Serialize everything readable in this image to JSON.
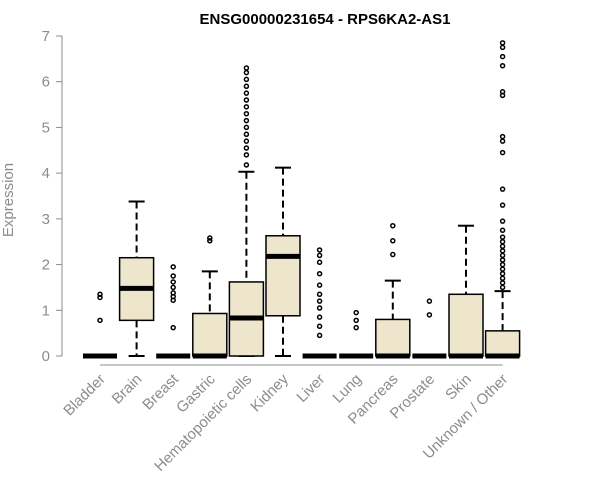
{
  "chart_data": {
    "type": "boxplot",
    "title": "ENSG00000231654 - RPS6KA2-AS1",
    "ylabel": "Expression",
    "xlabel": "",
    "ylim": [
      0,
      7
    ],
    "yticks": [
      "0",
      "1",
      "2",
      "3",
      "4",
      "5",
      "6",
      "7"
    ],
    "grid": false,
    "colors": {
      "box_fill": "#ede5cc",
      "stroke": "#000000",
      "axis": "#8c8c8c"
    },
    "categories": [
      "Bladder",
      "Brain",
      "Breast",
      "Gastric",
      "Hematopoietic cells",
      "Kidney",
      "Liver",
      "Lung",
      "Pancreas",
      "Prostate",
      "Skin",
      "Unknown / Other"
    ],
    "boxes": [
      {
        "category": "Bladder",
        "min": 0,
        "q1": 0,
        "median": 0,
        "q3": 0,
        "max": 0,
        "outliers": [
          0.78,
          1.28,
          1.35
        ]
      },
      {
        "category": "Brain",
        "min": 0,
        "q1": 0.78,
        "median": 1.48,
        "q3": 2.15,
        "max": 3.38,
        "outliers": []
      },
      {
        "category": "Breast",
        "min": 0,
        "q1": 0,
        "median": 0,
        "q3": 0,
        "max": 0,
        "outliers": [
          0.62,
          1.22,
          1.3,
          1.38,
          1.5,
          1.62,
          1.75,
          1.95
        ]
      },
      {
        "category": "Gastric",
        "min": 0,
        "q1": 0,
        "median": 0,
        "q3": 0.93,
        "max": 1.85,
        "outliers": [
          2.52,
          2.58
        ]
      },
      {
        "category": "Hematopoietic cells",
        "min": 0,
        "q1": 0,
        "median": 0.83,
        "q3": 1.62,
        "max": 4.03,
        "outliers": [
          4.18,
          4.4,
          4.55,
          4.7,
          4.85,
          5.0,
          5.15,
          5.3,
          5.45,
          5.6,
          5.75,
          5.9,
          6.05,
          6.2,
          6.3
        ]
      },
      {
        "category": "Kidney",
        "min": 0,
        "q1": 0.88,
        "median": 2.18,
        "q3": 2.63,
        "max": 4.12,
        "outliers": []
      },
      {
        "category": "Liver",
        "min": 0,
        "q1": 0,
        "median": 0,
        "q3": 0,
        "max": 0,
        "outliers": [
          0.45,
          0.65,
          0.85,
          1.05,
          1.2,
          1.35,
          1.55,
          1.8,
          2.05,
          2.2,
          2.32
        ]
      },
      {
        "category": "Lung",
        "min": 0,
        "q1": 0,
        "median": 0,
        "q3": 0,
        "max": 0,
        "outliers": [
          0.62,
          0.78,
          0.95
        ]
      },
      {
        "category": "Pancreas",
        "min": 0,
        "q1": 0,
        "median": 0,
        "q3": 0.8,
        "max": 1.65,
        "outliers": [
          2.22,
          2.52,
          2.85
        ]
      },
      {
        "category": "Prostate",
        "min": 0,
        "q1": 0,
        "median": 0,
        "q3": 0,
        "max": 0,
        "outliers": [
          0.9,
          1.2
        ]
      },
      {
        "category": "Skin",
        "min": 0,
        "q1": 0,
        "median": 0,
        "q3": 1.35,
        "max": 2.85,
        "outliers": []
      },
      {
        "category": "Unknown / Other",
        "min": 0,
        "q1": 0,
        "median": 0,
        "q3": 0.55,
        "max": 1.42,
        "outliers": [
          1.5,
          1.6,
          1.7,
          1.8,
          1.9,
          2.0,
          2.1,
          2.2,
          2.3,
          2.4,
          2.5,
          2.6,
          2.75,
          2.95,
          3.3,
          3.65,
          4.45,
          4.7,
          4.8,
          5.7,
          5.78,
          6.35,
          6.55,
          6.75,
          6.85
        ]
      }
    ]
  }
}
